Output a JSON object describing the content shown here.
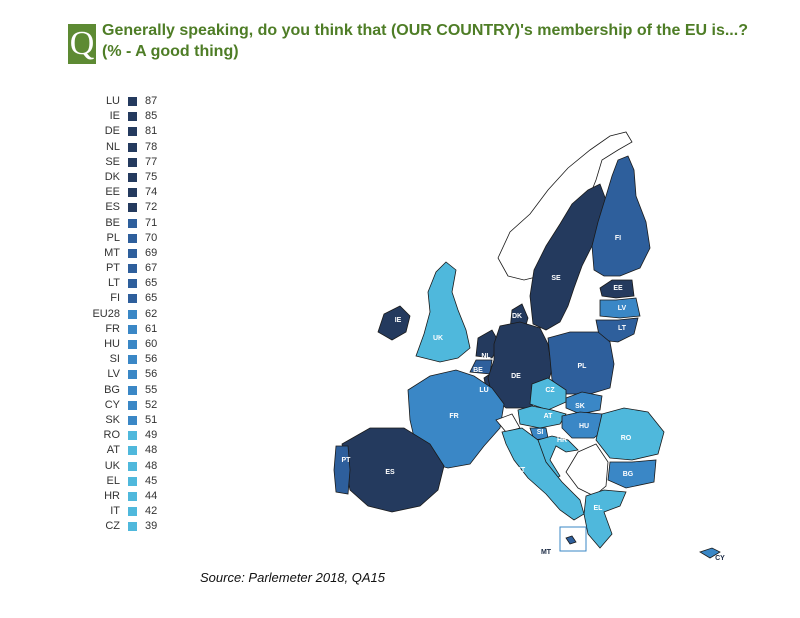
{
  "header": {
    "badge": "Q",
    "title_line1": "Generally speaking, do you think that (OUR COUNTRY)'s membership of the EU is...?",
    "title_line2": "(% -  A  good thing)"
  },
  "legend": [
    {
      "code": "LU",
      "value": "87"
    },
    {
      "code": "IE",
      "value": "85"
    },
    {
      "code": "DE",
      "value": "81"
    },
    {
      "code": "NL",
      "value": "78"
    },
    {
      "code": "SE",
      "value": "77"
    },
    {
      "code": "DK",
      "value": "75"
    },
    {
      "code": "EE",
      "value": "74"
    },
    {
      "code": "ES",
      "value": "72"
    },
    {
      "code": "BE",
      "value": "71"
    },
    {
      "code": "PL",
      "value": "70"
    },
    {
      "code": "MT",
      "value": "69"
    },
    {
      "code": "PT",
      "value": "67"
    },
    {
      "code": "LT",
      "value": "65"
    },
    {
      "code": "FI",
      "value": "65"
    },
    {
      "code": "EU28",
      "value": "62"
    },
    {
      "code": "FR",
      "value": "61"
    },
    {
      "code": "HU",
      "value": "60"
    },
    {
      "code": "SI",
      "value": "56"
    },
    {
      "code": "LV",
      "value": "56"
    },
    {
      "code": "BG",
      "value": "55"
    },
    {
      "code": "CY",
      "value": "52"
    },
    {
      "code": "SK",
      "value": "51"
    },
    {
      "code": "RO",
      "value": "49"
    },
    {
      "code": "AT",
      "value": "48"
    },
    {
      "code": "UK",
      "value": "48"
    },
    {
      "code": "EL",
      "value": "45"
    },
    {
      "code": "HR",
      "value": "44"
    },
    {
      "code": "IT",
      "value": "42"
    },
    {
      "code": "CZ",
      "value": "39"
    }
  ],
  "colors": {
    "dark": "#243a5e",
    "mid_dark": "#2e5f9c",
    "mid": "#3a87c6",
    "light": "#4fb8dc",
    "outline": "#1a1a1a",
    "non_eu": "#ffffff"
  },
  "source": "Source: Parlemeter 2018, QA15"
}
